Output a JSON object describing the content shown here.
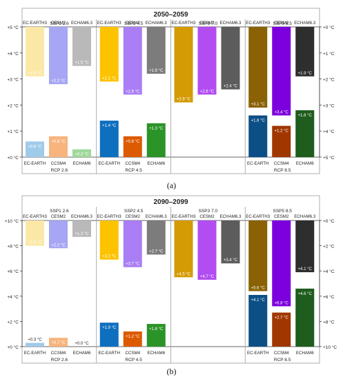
{
  "chart_data": [
    {
      "type": "bar",
      "title": "2050–2059",
      "caption": "(a)",
      "left_axis": {
        "min": 0,
        "max": 5,
        "ticks": [
          "+0 °C",
          "+1 °C",
          "+2 °C",
          "+3 °C",
          "+4 °C",
          "+5 °C"
        ]
      },
      "right_axis": {
        "min": 0,
        "max": 5,
        "inverted": true,
        "ticks": [
          "+0 °C",
          "+1 °C",
          "+2 °C",
          "+3 °C",
          "+4 °C",
          "+5 °C"
        ]
      },
      "groups": [
        {
          "ssp": "SSP1 2.6",
          "rcp": "RCP 2.6",
          "top_models": [
            "EC-EARTH3",
            "CESM2",
            "ECHAM6.3"
          ],
          "bottom_models": [
            "EC-EARTH",
            "CCSM4",
            "ECHAM6"
          ],
          "top_values": [
            1.9,
            2.2,
            1.5
          ],
          "top_labels": [
            "+1.9 °C",
            "+2.2 °C",
            "+1.5 °C"
          ],
          "bottom_values": [
            0.6,
            0.8,
            0.3
          ],
          "bottom_labels": [
            "+0.6 °C",
            "+0.8 °C",
            "+0.3 °C"
          ]
        },
        {
          "ssp": "SSP2 4.5",
          "rcp": "RCP 4.5",
          "top_models": [
            "EC-EARTH3",
            "CESM2",
            "ECHAM6.3"
          ],
          "bottom_models": [
            "EC-EARTH",
            "CCSM4",
            "ECHAM6"
          ],
          "top_values": [
            2.1,
            2.6,
            1.8
          ],
          "top_labels": [
            "+2.1 °C",
            "+2.6 °C",
            "+1.8 °C"
          ],
          "bottom_values": [
            1.4,
            0.8,
            1.3
          ],
          "bottom_labels": [
            "+1.4 °C",
            "+0.8 °C",
            "+1.3 °C"
          ]
        },
        {
          "ssp": "SSP3 7.0",
          "rcp": "",
          "top_models": [
            "EC-EARTH3",
            "CESM2",
            "ECHAM6.3"
          ],
          "bottom_models": [],
          "top_values": [
            2.9,
            2.6,
            2.4
          ],
          "top_labels": [
            "+2.9 °C",
            "+2.6 °C",
            "+2.4 °C"
          ],
          "bottom_values": [],
          "bottom_labels": []
        },
        {
          "ssp": "SSP5 8.5",
          "rcp": "RCP 8.5",
          "top_models": [
            "EC-EARTH3",
            "CESM2",
            "ECHAM6.3"
          ],
          "bottom_models": [
            "EC-EARTH",
            "CCSM4",
            "ECHAM6"
          ],
          "top_values": [
            3.1,
            3.4,
            1.9
          ],
          "top_labels": [
            "+3.1 °C",
            "+3.4 °C",
            "+1.9 °C"
          ],
          "bottom_values": [
            1.6,
            1.2,
            1.8
          ],
          "bottom_labels": [
            "+1.6 °C",
            "+1.2 °C",
            "+1.8 °C"
          ]
        }
      ]
    },
    {
      "type": "bar",
      "title": "2090–2099",
      "caption": "(b)",
      "left_axis": {
        "min": 0,
        "max": 10,
        "ticks": [
          "+0 °C",
          "+2 °C",
          "+4 °C",
          "+6 °C",
          "+8 °C",
          "+10 °C"
        ]
      },
      "right_axis": {
        "min": 0,
        "max": 10,
        "inverted": true,
        "ticks": [
          "+0 °C",
          "+2 °C",
          "+4 °C",
          "+6 °C",
          "+8 °C",
          "+10 °C"
        ]
      },
      "groups": [
        {
          "ssp": "SSP1 2.6",
          "rcp": "RCP 2.6",
          "top_models": [
            "EC-EARTH3",
            "CESM2",
            "ECHAM6.3"
          ],
          "bottom_models": [
            "EC-EARTH",
            "CCSM4",
            "ECHAM6"
          ],
          "top_values": [
            2.0,
            2.2,
            1.3
          ],
          "top_labels": [
            "+2.0 °C",
            "+2.2 °C",
            "+1.3 °C"
          ],
          "bottom_values": [
            0.3,
            0.7,
            0.0
          ],
          "bottom_labels": [
            "+0.3 °C",
            "+0.7 °C",
            "+0.0 °C"
          ]
        },
        {
          "ssp": "SSP2 4.5",
          "rcp": "RCP 4.5",
          "top_models": [
            "EC-EARTH3",
            "CESM2",
            "ECHAM6.3"
          ],
          "bottom_models": [
            "EC-EARTH",
            "CCSM4",
            "ECHAM6"
          ],
          "top_values": [
            3.1,
            3.7,
            2.7
          ],
          "top_labels": [
            "+3.1 °C",
            "+3.7 °C",
            "+2.7 °C"
          ],
          "bottom_values": [
            1.9,
            1.2,
            1.8
          ],
          "bottom_labels": [
            "+1.9 °C",
            "+1.2 °C",
            "+1.8 °C"
          ]
        },
        {
          "ssp": "SSP3 7.0",
          "rcp": "",
          "top_models": [
            "EC-EARTH3",
            "CESM2",
            "ECHAM6.3"
          ],
          "bottom_models": [],
          "top_values": [
            4.5,
            4.7,
            3.4
          ],
          "top_labels": [
            "+4.5 °C",
            "+4.7 °C",
            "+3.4 °C"
          ],
          "bottom_values": [],
          "bottom_labels": []
        },
        {
          "ssp": "SSP5 8.5",
          "rcp": "RCP 8.5",
          "top_models": [
            "EC-EARTH3",
            "CESM2",
            "ECHAM6.3"
          ],
          "bottom_models": [
            "EC-EARTH",
            "CCSM4",
            "ECHAM6"
          ],
          "top_values": [
            5.6,
            6.8,
            4.1
          ],
          "top_labels": [
            "+5.6 °C",
            "+6.8 °C",
            "+4.1 °C"
          ],
          "bottom_values": [
            4.1,
            2.7,
            4.6
          ],
          "bottom_labels": [
            "+4.1 °C",
            "+2.7 °C",
            "+4.6 °C"
          ]
        }
      ]
    }
  ],
  "colors": {
    "top": [
      [
        "#fbe8a6",
        "#a6a6f4",
        "#b9b9b9"
      ],
      [
        "#fdc300",
        "#aa7ef5",
        "#7c7c7c"
      ],
      [
        "#d49b05",
        "#b24df2",
        "#5c5c5c"
      ],
      [
        "#8a6104",
        "#7c00dd",
        "#2e2e2e"
      ]
    ],
    "bottom": [
      [
        "#9fcbea",
        "#f7b47d",
        "#9ed89a"
      ],
      [
        "#0e6fbf",
        "#dc5a00",
        "#2b9428"
      ],
      [],
      [
        "#0b4f86",
        "#a03600",
        "#1e5d1d"
      ]
    ],
    "frame": "#9a9a9a",
    "label_text": "#ffffff"
  }
}
